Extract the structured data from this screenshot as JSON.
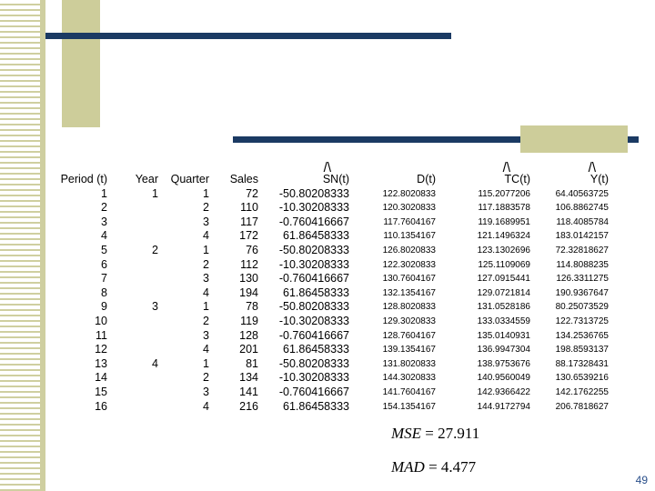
{
  "table": {
    "headers": {
      "period": "Period (t)",
      "year": "Year",
      "quarter": "Quarter",
      "sales": "Sales",
      "sn": "SN(t)",
      "d": "D(t)",
      "tc": "TC(t)",
      "y": "Y(t)",
      "hat": "/\\"
    },
    "rows": [
      {
        "period": "1",
        "year": "1",
        "quarter": "1",
        "sales": "72",
        "sn": "-50.80208333",
        "d": "122.8020833",
        "tc": "115.2077206",
        "y": "64.40563725"
      },
      {
        "period": "2",
        "year": "",
        "quarter": "2",
        "sales": "110",
        "sn": "-10.30208333",
        "d": "120.3020833",
        "tc": "117.1883578",
        "y": "106.8862745"
      },
      {
        "period": "3",
        "year": "",
        "quarter": "3",
        "sales": "117",
        "sn": "-0.760416667",
        "d": "117.7604167",
        "tc": "119.1689951",
        "y": "118.4085784"
      },
      {
        "period": "4",
        "year": "",
        "quarter": "4",
        "sales": "172",
        "sn": "61.86458333",
        "d": "110.1354167",
        "tc": "121.1496324",
        "y": "183.0142157"
      },
      {
        "period": "5",
        "year": "2",
        "quarter": "1",
        "sales": "76",
        "sn": "-50.80208333",
        "d": "126.8020833",
        "tc": "123.1302696",
        "y": "72.32818627"
      },
      {
        "period": "6",
        "year": "",
        "quarter": "2",
        "sales": "112",
        "sn": "-10.30208333",
        "d": "122.3020833",
        "tc": "125.1109069",
        "y": "114.8088235"
      },
      {
        "period": "7",
        "year": "",
        "quarter": "3",
        "sales": "130",
        "sn": "-0.760416667",
        "d": "130.7604167",
        "tc": "127.0915441",
        "y": "126.3311275"
      },
      {
        "period": "8",
        "year": "",
        "quarter": "4",
        "sales": "194",
        "sn": "61.86458333",
        "d": "132.1354167",
        "tc": "129.0721814",
        "y": "190.9367647"
      },
      {
        "period": "9",
        "year": "3",
        "quarter": "1",
        "sales": "78",
        "sn": "-50.80208333",
        "d": "128.8020833",
        "tc": "131.0528186",
        "y": "80.25073529"
      },
      {
        "period": "10",
        "year": "",
        "quarter": "2",
        "sales": "119",
        "sn": "-10.30208333",
        "d": "129.3020833",
        "tc": "133.0334559",
        "y": "122.7313725"
      },
      {
        "period": "11",
        "year": "",
        "quarter": "3",
        "sales": "128",
        "sn": "-0.760416667",
        "d": "128.7604167",
        "tc": "135.0140931",
        "y": "134.2536765"
      },
      {
        "period": "12",
        "year": "",
        "quarter": "4",
        "sales": "201",
        "sn": "61.86458333",
        "d": "139.1354167",
        "tc": "136.9947304",
        "y": "198.8593137"
      },
      {
        "period": "13",
        "year": "4",
        "quarter": "1",
        "sales": "81",
        "sn": "-50.80208333",
        "d": "131.8020833",
        "tc": "138.9753676",
        "y": "88.17328431"
      },
      {
        "period": "14",
        "year": "",
        "quarter": "2",
        "sales": "134",
        "sn": "-10.30208333",
        "d": "144.3020833",
        "tc": "140.9560049",
        "y": "130.6539216"
      },
      {
        "period": "15",
        "year": "",
        "quarter": "3",
        "sales": "141",
        "sn": "-0.760416667",
        "d": "141.7604167",
        "tc": "142.9366422",
        "y": "142.1762255"
      },
      {
        "period": "16",
        "year": "",
        "quarter": "4",
        "sales": "216",
        "sn": "61.86458333",
        "d": "154.1354167",
        "tc": "144.9172794",
        "y": "206.7818627"
      }
    ]
  },
  "metrics": {
    "mse_label": "MSE",
    "mse_value": "= 27.911",
    "mad_label": "MAD",
    "mad_value": "= 4.477"
  },
  "page_number": "49",
  "colors": {
    "navy_bar": "#1b3a63",
    "khaki": "#cdcd9a",
    "page_number": "#2a4f8a"
  }
}
